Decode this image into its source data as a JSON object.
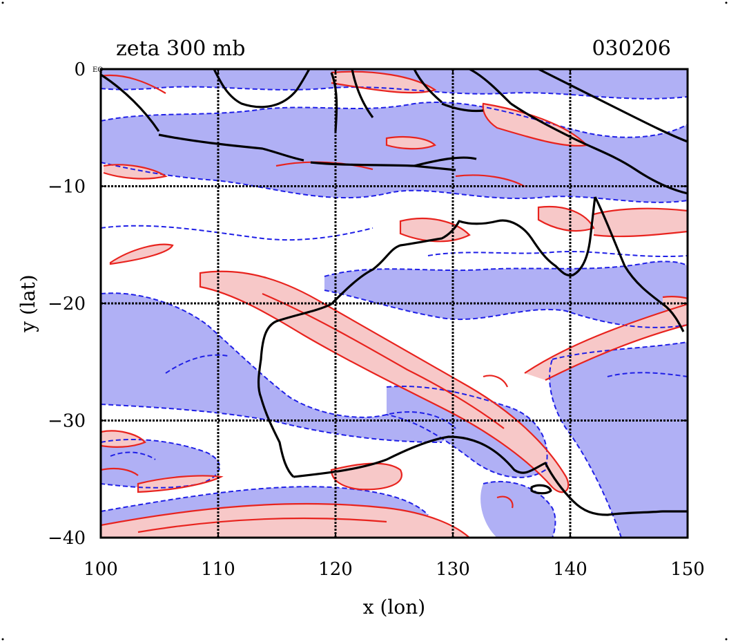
{
  "title_left": "zeta 300 mb",
  "title_right": "030206",
  "x_label": "x (lon)",
  "y_label": "y (lat)",
  "corner_label": "EQ",
  "x_ticks": [
    "100",
    "110",
    "120",
    "130",
    "140",
    "150"
  ],
  "y_ticks": [
    "0",
    "−10",
    "−20",
    "−30",
    "−40"
  ],
  "chart_data": {
    "type": "contour-map",
    "xlim": [
      100,
      150
    ],
    "ylim": [
      -40,
      0
    ],
    "grid": true,
    "grid_lon": [
      110,
      120,
      130,
      140
    ],
    "grid_lat": [
      -10,
      -20,
      -30
    ],
    "colors": {
      "positive_line": "#e8231e",
      "positive_fill": "#f7c8c8",
      "negative_line": "#1f1fe6",
      "negative_fill": "#b0b0f5",
      "coast": "#000000"
    }
  }
}
